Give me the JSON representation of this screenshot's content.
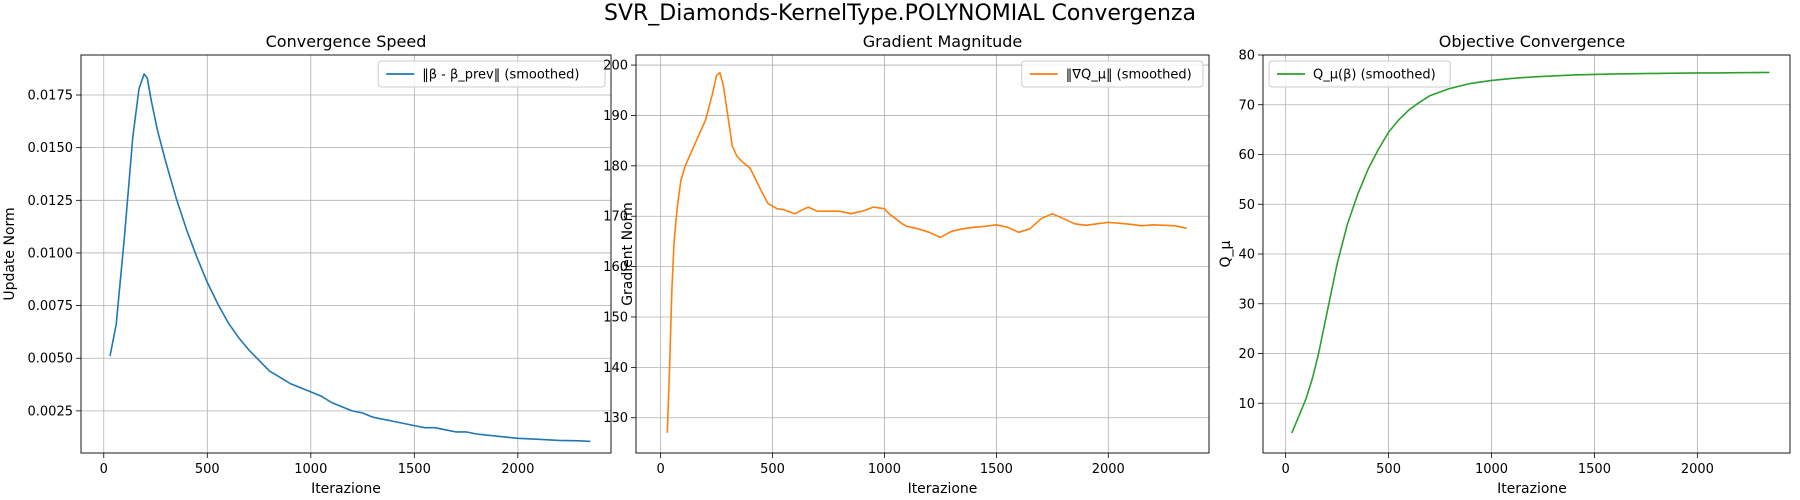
{
  "figure": {
    "title": "SVR_Diamonds-KernelType.POLYNOMIAL Convergenza"
  },
  "chart_data": [
    {
      "type": "line",
      "title": "Convergence Speed",
      "xlabel": "Iterazione",
      "ylabel": "Update Norm",
      "xlim": [
        -110,
        2450
      ],
      "ylim": [
        0.0005,
        0.0194
      ],
      "xticks": [
        0,
        500,
        1000,
        1500,
        2000
      ],
      "yticks": [
        0.0025,
        0.005,
        0.0075,
        0.01,
        0.0125,
        0.015,
        0.0175
      ],
      "ytick_labels": [
        "0.0025",
        "0.0050",
        "0.0075",
        "0.0100",
        "0.0125",
        "0.0150",
        "0.0175"
      ],
      "grid": true,
      "legend_position": "upper right",
      "series": [
        {
          "name": "‖β - β_prev‖ (smoothed)",
          "color": "#1f77b4",
          "x": [
            30,
            60,
            100,
            140,
            170,
            195,
            210,
            230,
            260,
            300,
            350,
            400,
            450,
            500,
            550,
            600,
            650,
            700,
            750,
            800,
            850,
            900,
            950,
            1000,
            1050,
            1100,
            1150,
            1200,
            1250,
            1300,
            1350,
            1400,
            1450,
            1500,
            1550,
            1600,
            1650,
            1700,
            1750,
            1800,
            1900,
            2000,
            2100,
            2200,
            2300,
            2350
          ],
          "values": [
            0.0051,
            0.0066,
            0.0108,
            0.0155,
            0.0178,
            0.0185,
            0.0183,
            0.0172,
            0.0158,
            0.0143,
            0.0126,
            0.0111,
            0.0098,
            0.0086,
            0.0076,
            0.0067,
            0.006,
            0.0054,
            0.0049,
            0.0044,
            0.0041,
            0.0038,
            0.0036,
            0.0034,
            0.0032,
            0.0029,
            0.0027,
            0.0025,
            0.0024,
            0.0022,
            0.0021,
            0.002,
            0.0019,
            0.0018,
            0.0017,
            0.0017,
            0.0016,
            0.0015,
            0.0015,
            0.0014,
            0.0013,
            0.0012,
            0.00115,
            0.0011,
            0.00108,
            0.00105
          ]
        }
      ]
    },
    {
      "type": "line",
      "title": "Gradient Magnitude",
      "xlabel": "Iterazione",
      "ylabel": "Gradient Norm",
      "xlim": [
        -110,
        2450
      ],
      "ylim": [
        123,
        202
      ],
      "xticks": [
        0,
        500,
        1000,
        1500,
        2000
      ],
      "yticks": [
        130,
        140,
        150,
        160,
        170,
        180,
        190,
        200
      ],
      "ytick_labels": [
        "130",
        "140",
        "150",
        "160",
        "170",
        "180",
        "190",
        "200"
      ],
      "grid": true,
      "legend_position": "upper right",
      "series": [
        {
          "name": "‖∇Q_μ‖ (smoothed)",
          "color": "#ff7f0e",
          "x": [
            30,
            40,
            50,
            60,
            75,
            90,
            110,
            130,
            160,
            200,
            230,
            250,
            265,
            280,
            300,
            320,
            340,
            360,
            400,
            450,
            480,
            500,
            520,
            550,
            600,
            630,
            660,
            700,
            750,
            800,
            850,
            900,
            950,
            1000,
            1020,
            1050,
            1080,
            1100,
            1150,
            1200,
            1250,
            1300,
            1350,
            1400,
            1450,
            1500,
            1530,
            1550,
            1600,
            1650,
            1700,
            1750,
            1800,
            1850,
            1900,
            1950,
            2000,
            2050,
            2100,
            2150,
            2200,
            2250,
            2300,
            2350
          ],
          "values": [
            127,
            140,
            155,
            165,
            172,
            177,
            180,
            182,
            185,
            189,
            194,
            198,
            198.5,
            196,
            190,
            184,
            182,
            181,
            179.5,
            175,
            172.5,
            172,
            171.5,
            171.3,
            170.5,
            171.2,
            171.8,
            171,
            171,
            171,
            170.5,
            171,
            171.8,
            171.5,
            170.5,
            169.5,
            168.5,
            168,
            167.5,
            166.8,
            165.8,
            167,
            167.5,
            167.8,
            168,
            168.3,
            168,
            167.8,
            166.8,
            167.5,
            169.5,
            170.5,
            169.5,
            168.5,
            168.2,
            168.5,
            168.8,
            168.6,
            168.4,
            168.1,
            168.3,
            168.2,
            168.1,
            167.6
          ]
        }
      ]
    },
    {
      "type": "line",
      "title": "Objective Convergence",
      "xlabel": "Iterazione",
      "ylabel": "Q_μ",
      "xlim": [
        -110,
        2450
      ],
      "ylim": [
        0,
        80
      ],
      "xticks": [
        0,
        500,
        1000,
        1500,
        2000
      ],
      "yticks": [
        10,
        20,
        30,
        40,
        50,
        60,
        70,
        80
      ],
      "ytick_labels": [
        "10",
        "20",
        "30",
        "40",
        "50",
        "60",
        "70",
        "80"
      ],
      "grid": true,
      "legend_position": "upper left",
      "series": [
        {
          "name": "Q_μ(β) (smoothed)",
          "color": "#2ca02c",
          "x": [
            30,
            60,
            100,
            130,
            160,
            200,
            250,
            300,
            350,
            400,
            450,
            500,
            550,
            600,
            650,
            700,
            800,
            900,
            1000,
            1100,
            1200,
            1300,
            1400,
            1500,
            1600,
            1700,
            1800,
            1900,
            2000,
            2100,
            2200,
            2350
          ],
          "values": [
            4,
            7,
            11,
            15,
            20,
            28,
            38,
            46,
            52,
            57,
            61,
            64.5,
            67,
            69,
            70.5,
            71.8,
            73.3,
            74.3,
            74.9,
            75.3,
            75.6,
            75.8,
            76.0,
            76.1,
            76.2,
            76.25,
            76.3,
            76.35,
            76.4,
            76.4,
            76.45,
            76.5
          ]
        }
      ]
    }
  ]
}
